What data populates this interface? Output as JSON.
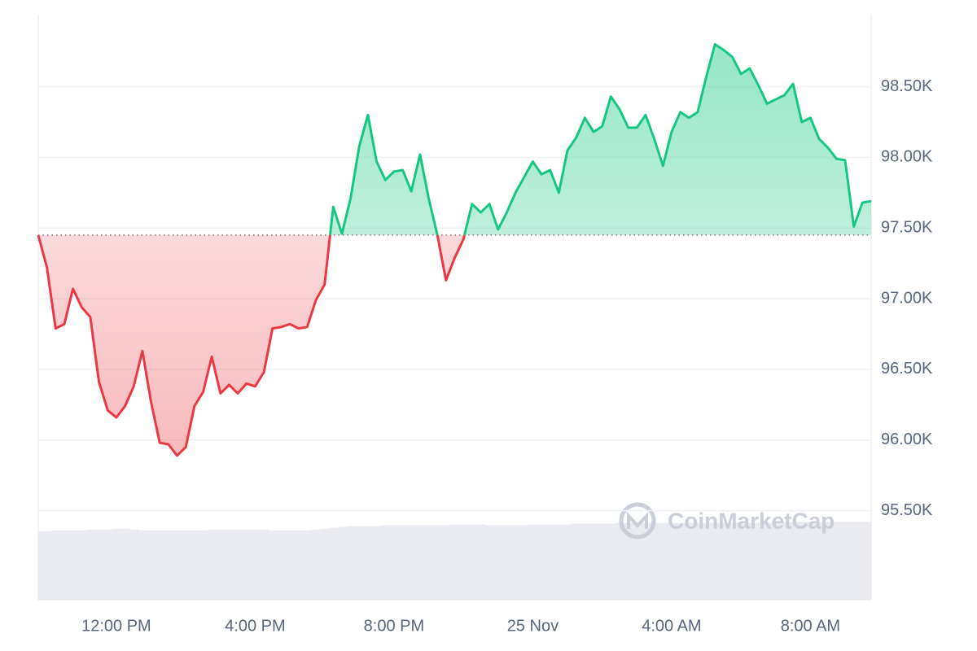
{
  "chart_data": {
    "type": "line",
    "x": [
      9.75,
      10,
      10.25,
      10.5,
      10.75,
      11,
      11.25,
      11.5,
      11.75,
      12,
      12.25,
      12.5,
      12.75,
      13,
      13.25,
      13.5,
      13.75,
      14,
      14.25,
      14.5,
      14.75,
      15,
      15.25,
      15.5,
      15.75,
      16,
      16.25,
      16.5,
      16.75,
      17,
      17.25,
      17.5,
      17.75,
      18,
      18.25,
      18.5,
      18.75,
      19,
      19.25,
      19.5,
      19.75,
      20,
      20.25,
      20.5,
      20.75,
      21,
      21.25,
      21.5,
      21.75,
      22,
      22.25,
      22.5,
      22.75,
      23,
      23.25,
      23.5,
      23.75,
      24,
      24.25,
      24.5,
      24.75,
      25,
      25.25,
      25.5,
      25.75,
      26,
      26.25,
      26.5,
      26.75,
      27,
      27.25,
      27.5,
      27.75,
      28,
      28.25,
      28.5,
      28.75,
      29,
      29.25,
      29.5,
      29.75,
      30,
      30.25,
      30.5,
      30.75,
      31,
      31.25,
      31.5,
      31.75,
      32,
      32.25,
      32.5,
      32.75,
      33,
      33.25,
      33.5,
      33.75
    ],
    "values": [
      97450,
      97220,
      96790,
      96820,
      97070,
      96940,
      96870,
      96410,
      96210,
      96160,
      96240,
      96380,
      96630,
      96270,
      95980,
      95970,
      95890,
      95950,
      96240,
      96340,
      96590,
      96330,
      96390,
      96330,
      96400,
      96380,
      96480,
      96790,
      96800,
      96820,
      96790,
      96800,
      96990,
      97100,
      97650,
      97460,
      97710,
      98080,
      98300,
      97970,
      97840,
      97900,
      97910,
      97760,
      98020,
      97710,
      97450,
      97130,
      97290,
      97420,
      97670,
      97610,
      97670,
      97490,
      97610,
      97750,
      97860,
      97970,
      97880,
      97910,
      97750,
      98050,
      98140,
      98280,
      98180,
      98220,
      98430,
      98340,
      98210,
      98210,
      98300,
      98130,
      97940,
      98180,
      98320,
      98280,
      98320,
      98570,
      98800,
      98760,
      98710,
      98590,
      98630,
      98510,
      98380,
      98410,
      98440,
      98520,
      98250,
      98280,
      98130,
      98070,
      97990,
      97980,
      97510,
      97680,
      97690
    ],
    "volume": [
      82,
      82,
      83,
      83,
      83,
      83,
      84,
      84,
      84,
      85,
      85,
      84,
      83,
      83,
      83,
      83,
      83,
      83,
      83,
      83,
      84,
      84,
      84,
      84,
      84,
      84,
      84,
      83,
      83,
      83,
      83,
      83,
      84,
      85,
      86,
      87,
      88,
      88,
      88,
      88,
      89,
      89,
      89,
      89,
      89,
      89,
      89,
      89,
      90,
      90,
      90,
      90,
      89,
      89,
      89,
      89,
      89,
      90,
      90,
      90,
      90,
      90,
      91,
      91,
      91,
      91,
      91,
      92,
      92,
      92,
      92,
      92,
      92,
      92,
      92,
      92,
      92,
      92,
      92,
      92,
      92,
      92,
      92,
      92,
      92,
      93,
      93,
      93,
      93,
      93,
      93,
      93,
      93,
      93,
      93,
      93,
      93
    ],
    "baseline": 97450,
    "up_color": "#16c784",
    "down_color": "#ea3943",
    "volume_color": "#e9ebf0",
    "xlim": [
      9.75,
      33.75
    ],
    "xticks": [
      {
        "value": 12,
        "label": "12:00 PM"
      },
      {
        "value": 16,
        "label": "4:00 PM"
      },
      {
        "value": 20,
        "label": "8:00 PM"
      },
      {
        "value": 24,
        "label": "25 Nov"
      },
      {
        "value": 28,
        "label": "4:00 AM"
      },
      {
        "value": 32,
        "label": "8:00 AM"
      }
    ],
    "ylim": [
      94870,
      99010
    ],
    "yticks": [
      {
        "value": 95500,
        "label": "95.50K"
      },
      {
        "value": 96000,
        "label": "96.00K"
      },
      {
        "value": 96500,
        "label": "96.50K"
      },
      {
        "value": 97000,
        "label": "97.00K"
      },
      {
        "value": 97500,
        "label": "97.50K"
      },
      {
        "value": 98000,
        "label": "98.00K"
      },
      {
        "value": 98500,
        "label": "98.50K"
      }
    ],
    "y2lim": [
      0,
      700
    ],
    "grid": true,
    "watermark": "CoinMarketCap"
  }
}
